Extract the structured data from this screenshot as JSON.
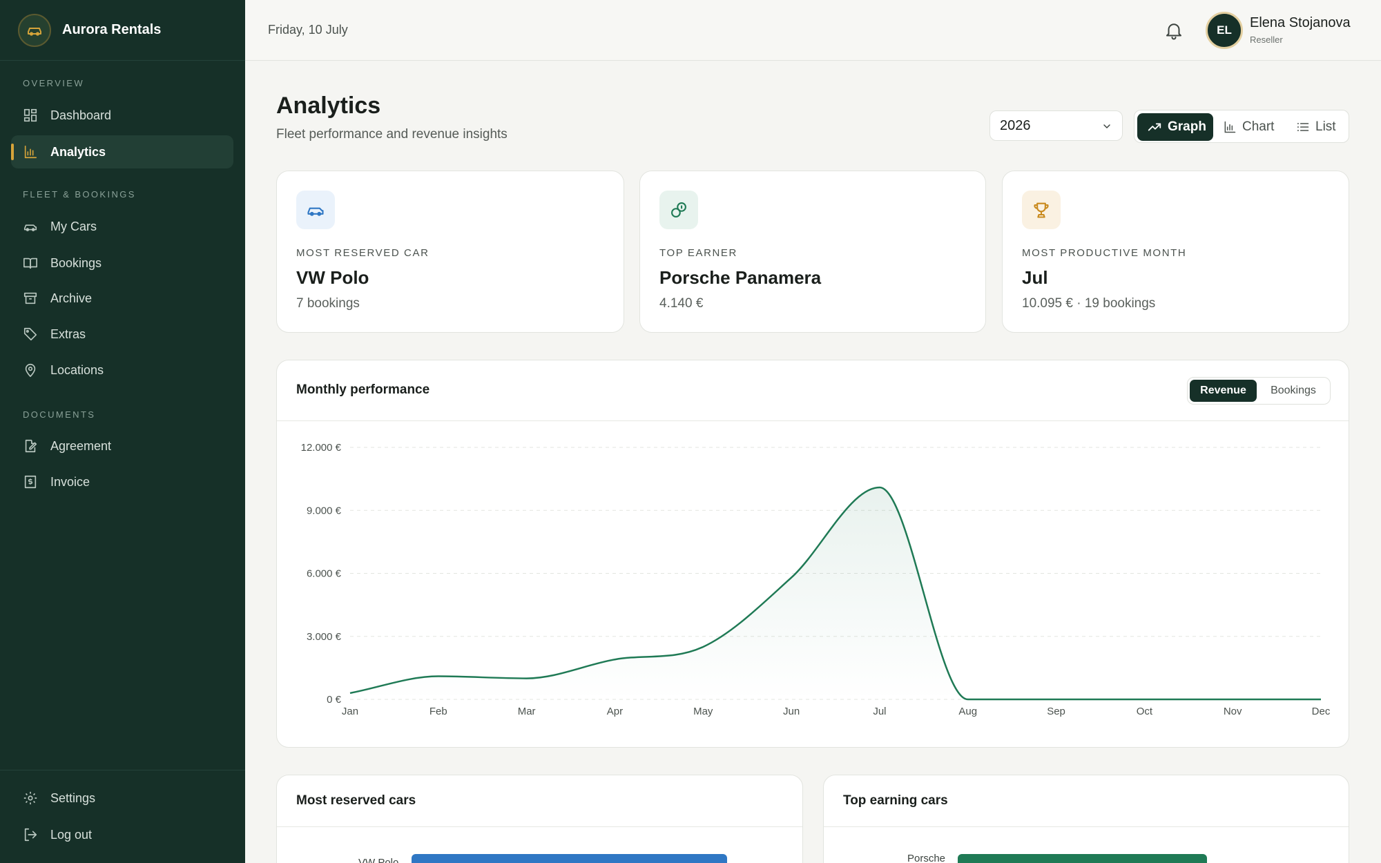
{
  "brand": {
    "name": "Aurora Rentals"
  },
  "sidebar": {
    "sections": [
      {
        "label": "OVERVIEW"
      },
      {
        "label": "FLEET & BOOKINGS"
      },
      {
        "label": "DOCUMENTS"
      }
    ],
    "items": [
      {
        "label": "Dashboard",
        "icon": "grid-icon"
      },
      {
        "label": "Analytics",
        "icon": "bar-chart-icon",
        "active": true
      },
      {
        "label": "My Cars",
        "icon": "car-icon"
      },
      {
        "label": "Bookings",
        "icon": "book-icon"
      },
      {
        "label": "Archive",
        "icon": "archive-icon"
      },
      {
        "label": "Extras",
        "icon": "tag-icon"
      },
      {
        "label": "Locations",
        "icon": "map-pin-icon"
      },
      {
        "label": "Agreement",
        "icon": "document-edit-icon"
      },
      {
        "label": "Invoice",
        "icon": "invoice-icon"
      }
    ],
    "bottom": [
      {
        "label": "Settings",
        "icon": "gear-icon"
      },
      {
        "label": "Log out",
        "icon": "logout-icon"
      }
    ]
  },
  "topbar": {
    "date": "Friday, 10 July",
    "user": {
      "initials": "EL",
      "name": "Elena Stojanova",
      "role": "Reseller"
    }
  },
  "page": {
    "title": "Analytics",
    "subtitle": "Fleet performance and revenue insights",
    "year": "2026",
    "views": [
      "Graph",
      "Chart",
      "List"
    ],
    "active_view": "Graph"
  },
  "kpis": [
    {
      "label": "MOST RESERVED CAR",
      "value": "VW Polo",
      "sub": "7 bookings",
      "icon": "car-icon",
      "accent": "#2f77c4",
      "bg": "#eaf2fb"
    },
    {
      "label": "TOP EARNER",
      "value": "Porsche Panamera",
      "sub": "4.140 €",
      "icon": "coins-icon",
      "accent": "#1f7a55",
      "bg": "#e8f3ee"
    },
    {
      "label": "MOST PRODUCTIVE MONTH",
      "value": "Jul",
      "sub": "10.095 € · 19 bookings",
      "icon": "trophy-icon",
      "accent": "#c98a1e",
      "bg": "#faf1e2"
    }
  ],
  "performance": {
    "title": "Monthly performance",
    "toggle": [
      "Revenue",
      "Bookings"
    ],
    "active": "Revenue"
  },
  "chart_data": {
    "type": "area",
    "categories": [
      "Jan",
      "Feb",
      "Mar",
      "Apr",
      "May",
      "Jun",
      "Jul",
      "Aug",
      "Sep",
      "Oct",
      "Nov",
      "Dec"
    ],
    "values": [
      300,
      1100,
      1000,
      1900,
      2500,
      5800,
      10095,
      0,
      0,
      0,
      0,
      0
    ],
    "yticks": [
      "0 €",
      "3.000 €",
      "6.000 €",
      "9.000 €",
      "12.000 €"
    ],
    "ylim": [
      0,
      12000
    ],
    "grid": true,
    "color": "#1f7a55"
  },
  "bottom_panels": {
    "reserved": {
      "title": "Most reserved cars",
      "first_label": "VW Polo",
      "color": "#2f77c4"
    },
    "earning": {
      "title": "Top earning cars",
      "first_label": "Porsche",
      "color": "#1f7a55"
    }
  }
}
